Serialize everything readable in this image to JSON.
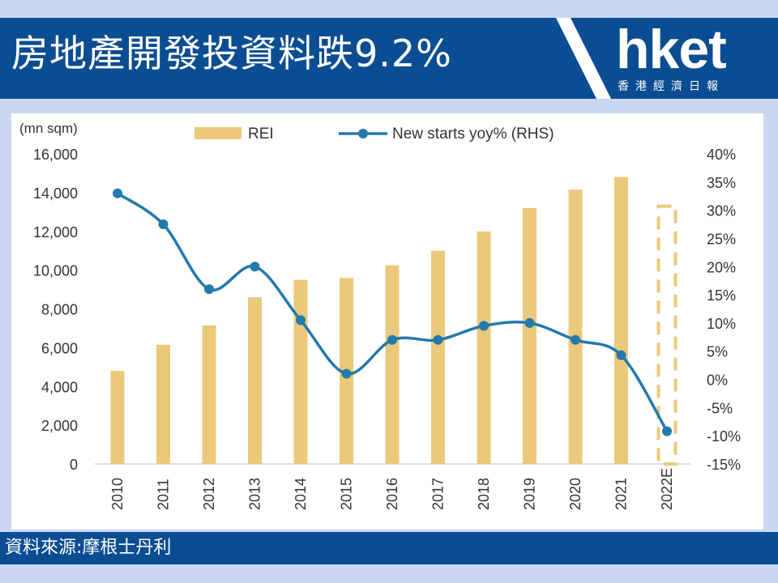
{
  "header": {
    "title": "房地產開發投資料跌9.2%",
    "logo_text": "hket",
    "logo_sub": "香港經濟日報"
  },
  "footer": {
    "source_label": "資料來源:摩根士丹利"
  },
  "colors": {
    "bar": "#ebc97b",
    "line": "#2379ad",
    "header_bg": "#0b4d92",
    "background": "#c9d7f2"
  },
  "chart_data": {
    "type": "bar",
    "left_axis_unit": "(mn sqm)",
    "legend_position": "top",
    "categories": [
      "2010",
      "2011",
      "2012",
      "2013",
      "2014",
      "2015",
      "2016",
      "2017",
      "2018",
      "2019",
      "2020",
      "2021",
      "2022E"
    ],
    "series": [
      {
        "name": "REI",
        "type": "bar",
        "axis": "left",
        "values": [
          4800,
          6150,
          7150,
          8600,
          9500,
          9600,
          10250,
          11000,
          12000,
          13200,
          14150,
          14800,
          13300
        ],
        "estimated_index": 12
      },
      {
        "name": "New starts yoy% (RHS)",
        "type": "line",
        "axis": "right",
        "values": [
          33,
          27.5,
          16,
          20,
          10.5,
          1,
          7,
          7,
          9.5,
          10,
          7,
          4.3,
          -9.2
        ]
      }
    ],
    "left_axis": {
      "min": 0,
      "max": 16000,
      "ticks": [
        "0",
        "2,000",
        "4,000",
        "6,000",
        "8,000",
        "10,000",
        "12,000",
        "14,000",
        "16,000"
      ]
    },
    "right_axis": {
      "min": -15,
      "max": 40,
      "ticks": [
        "-15%",
        "-10%",
        "-5%",
        "0%",
        "5%",
        "10%",
        "15%",
        "20%",
        "25%",
        "30%",
        "35%",
        "40%"
      ]
    },
    "grid": false
  }
}
